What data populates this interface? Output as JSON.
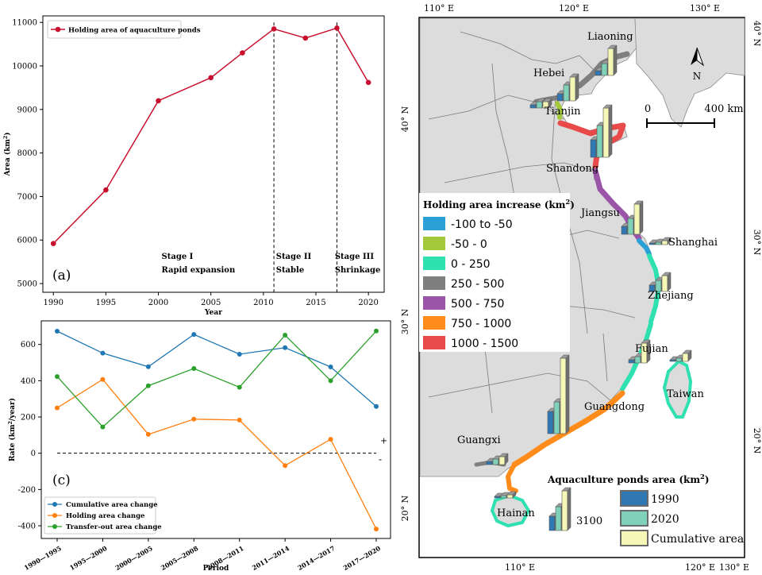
{
  "chart_data": [
    {
      "type": "line",
      "panel_label": "(a)",
      "x": [
        1990,
        1995,
        2000,
        2005,
        2008,
        2011,
        2014,
        2017,
        2020
      ],
      "series": [
        {
          "name": "Holding area of aquaculture ponds",
          "color": "#c8102e",
          "values": [
            5920,
            7150,
            9200,
            9730,
            10300,
            10850,
            10640,
            10870,
            9620
          ]
        }
      ],
      "xlabel": "Year",
      "ylabel": "Area (km²)",
      "xlim": [
        1989,
        2021.5
      ],
      "ylim": [
        4800,
        11150
      ],
      "xticks": [
        1990,
        1995,
        2000,
        2005,
        2010,
        2015,
        2020
      ],
      "yticks": [
        5000,
        6000,
        7000,
        8000,
        9000,
        10000,
        11000
      ],
      "stage_lines": [
        2011,
        2017
      ],
      "stages": [
        {
          "x": 2000.3,
          "name": "Stage I",
          "desc": "Rapid expansion"
        },
        {
          "x": 2011.2,
          "name": "Stage II",
          "desc": "Stable"
        },
        {
          "x": 2016.8,
          "name": "Stage III",
          "desc": "Shrinkage"
        }
      ],
      "legend": "top-left"
    },
    {
      "type": "line",
      "panel_label": "(c)",
      "categories": [
        "1990—1995",
        "1995—2000",
        "2000—2005",
        "2005—2008",
        "2008—2011",
        "2011—2014",
        "2014—2017",
        "2017—2020"
      ],
      "series": [
        {
          "name": "Cumulative area change",
          "color": "#1f77b4",
          "values": [
            673,
            552,
            477,
            655,
            546,
            582,
            476,
            258
          ]
        },
        {
          "name": "Holding area change",
          "color": "#ff7f0e",
          "values": [
            250,
            407,
            104,
            188,
            183,
            -68,
            77,
            -418
          ]
        },
        {
          "name": "Transfer-out area change",
          "color": "#2ca02c",
          "values": [
            423,
            145,
            372,
            467,
            364,
            651,
            400,
            674
          ]
        }
      ],
      "xlabel": "Period",
      "ylabel": "Rate (km²/year)",
      "ylim": [
        -470,
        730
      ],
      "yticks": [
        -400,
        -200,
        0,
        200,
        400,
        600
      ],
      "zero_line": true,
      "plus_label": "+",
      "minus_label": "-",
      "legend": "bottom-left"
    },
    {
      "type": "map",
      "panel_label": "",
      "lon_labels": [
        "110° E",
        "120° E",
        "130° E"
      ],
      "lat_labels": [
        "40° N",
        "30° N",
        "20° N"
      ],
      "scale_bar": {
        "start": "0",
        "end": "400 km"
      },
      "north_label": "N",
      "provinces": [
        "Liaoning",
        "Hebei",
        "Tianjin",
        "Shandong",
        "Jiangsu",
        "Shanghai",
        "Zhejiang",
        "Fujian",
        "Taiwan",
        "Guangdong",
        "Guangxi",
        "Hainan"
      ],
      "increase_legend": {
        "title": "Holding area increase (km²)",
        "classes": [
          {
            "label": "-100 to -50",
            "color": "#2ba0d6"
          },
          {
            "label": "-50 - 0",
            "color": "#a3c93a"
          },
          {
            "label": "0 - 250",
            "color": "#2fe0b0"
          },
          {
            "label": "250 - 500",
            "color": "#7f7f7f"
          },
          {
            "label": "500 - 750",
            "color": "#9b55a8"
          },
          {
            "label": "750 - 1000",
            "color": "#ff8c1a"
          },
          {
            "label": "1000 - 1500",
            "color": "#e84a4a"
          }
        ]
      },
      "ponds_legend": {
        "title": "Aquaculture ponds area (km²)",
        "reference_value": "3100",
        "items": [
          {
            "label": "1990",
            "color": "#2f78b4"
          },
          {
            "label": "2020",
            "color": "#7fd1b9"
          },
          {
            "label": "Cumulative area",
            "color": "#f4f7b6"
          }
        ]
      }
    }
  ]
}
